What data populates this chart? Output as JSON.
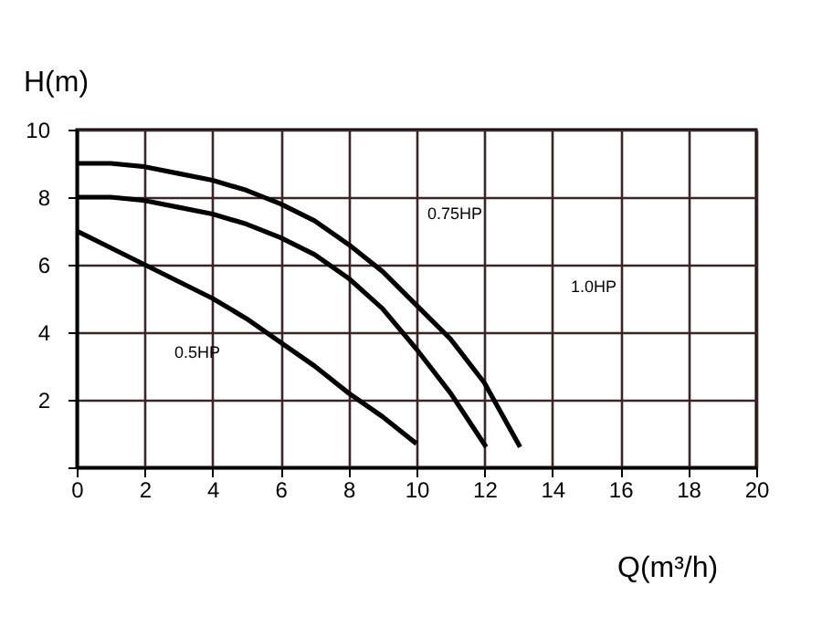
{
  "chart_data": {
    "type": "line",
    "xlabel": "Q(m³/h)",
    "ylabel": "H(m)",
    "xlim": [
      0,
      20
    ],
    "ylim": [
      0,
      10
    ],
    "xticks": [
      0,
      2,
      4,
      6,
      8,
      10,
      12,
      14,
      16,
      18,
      20
    ],
    "yticks": [
      {
        "value": 0,
        "label": null
      },
      2,
      4,
      6,
      8,
      10
    ],
    "grid": true,
    "legend": false,
    "marker": "none",
    "line_style": "solid",
    "series": [
      {
        "color": "#000000",
        "x": [
          0,
          1,
          2,
          3,
          4,
          5,
          6,
          7,
          8,
          9,
          10
        ],
        "values": [
          7,
          6.5,
          6,
          5.5,
          5,
          4.4,
          3.7,
          3,
          2.2,
          1.5,
          0.7
        ]
      },
      {
        "color": "#000000",
        "x": [
          0,
          1,
          2,
          3,
          4,
          5,
          6,
          7,
          8,
          9,
          10,
          11,
          12.05
        ],
        "values": [
          8,
          8,
          7.9,
          7.7,
          7.5,
          7.2,
          6.8,
          6.3,
          5.6,
          4.7,
          3.5,
          2.2,
          0.6
        ]
      },
      {
        "color": "#000000",
        "x": [
          0,
          1,
          2,
          3,
          4,
          5,
          6,
          7,
          8,
          9,
          10,
          11,
          12,
          13.05
        ],
        "values": [
          9,
          9,
          8.9,
          8.7,
          8.5,
          8.2,
          7.8,
          7.3,
          6.6,
          5.8,
          4.8,
          3.8,
          2.5,
          0.6
        ]
      }
    ],
    "annotations": [
      "0.5HP",
      "0.75HP",
      "1.0HP"
    ]
  }
}
